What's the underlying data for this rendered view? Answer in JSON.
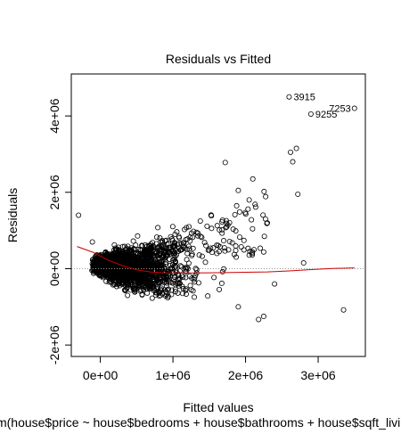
{
  "chart_data": {
    "type": "scatter",
    "title": "Residuals vs Fitted",
    "xlabel": "Fitted values",
    "ylabel": "Residuals",
    "caption": "lm(house$price ~ house$bedrooms + house$bathrooms + house$sqft_living + ...)",
    "xlim": [
      -400000,
      3650000
    ],
    "ylim": [
      -2300000,
      5100000
    ],
    "x_ticks": [
      {
        "value": 0,
        "label": "0e+00"
      },
      {
        "value": 1000000,
        "label": "1e+06"
      },
      {
        "value": 2000000,
        "label": "2e+06"
      },
      {
        "value": 3000000,
        "label": "3e+06"
      }
    ],
    "y_ticks": [
      {
        "value": -2000000,
        "label": "-2e+06"
      },
      {
        "value": 0,
        "label": "0e+00"
      },
      {
        "value": 2000000,
        "label": "2e+06"
      },
      {
        "value": 4000000,
        "label": "4e+06"
      }
    ],
    "zero_line": {
      "y": 0,
      "style": "dotted",
      "color": "#999999"
    },
    "smooth_line": {
      "color": "#cc0000",
      "points": [
        [
          -320000,
          580000
        ],
        [
          -100000,
          430000
        ],
        [
          100000,
          230000
        ],
        [
          300000,
          80000
        ],
        [
          500000,
          -30000
        ],
        [
          700000,
          -90000
        ],
        [
          900000,
          -110000
        ],
        [
          1100000,
          -115000
        ],
        [
          1300000,
          -112000
        ],
        [
          1500000,
          -108000
        ],
        [
          1700000,
          -103000
        ],
        [
          2000000,
          -95000
        ],
        [
          2300000,
          -85000
        ],
        [
          2600000,
          -60000
        ],
        [
          2900000,
          -25000
        ],
        [
          3200000,
          5000
        ],
        [
          3500000,
          20000
        ]
      ]
    },
    "outliers": [
      {
        "x": 2600000,
        "y": 4500000,
        "label": "3915"
      },
      {
        "x": 3500000,
        "y": 4200000,
        "label": "7253"
      },
      {
        "x": 2900000,
        "y": 4050000,
        "label": "9255"
      },
      {
        "x": 2700000,
        "y": 3150000,
        "label": ""
      },
      {
        "x": 2620000,
        "y": 3050000,
        "label": ""
      },
      {
        "x": 1720000,
        "y": 2780000,
        "label": ""
      },
      {
        "x": 2650000,
        "y": 2800000,
        "label": ""
      },
      {
        "x": 2100000,
        "y": 2350000,
        "label": ""
      },
      {
        "x": 2720000,
        "y": 1950000,
        "label": ""
      },
      {
        "x": -300000,
        "y": 1400000,
        "label": ""
      },
      {
        "x": -110000,
        "y": 700000,
        "label": ""
      },
      {
        "x": 2800000,
        "y": 150000,
        "label": ""
      },
      {
        "x": 3350000,
        "y": -1080000,
        "label": ""
      },
      {
        "x": 2250000,
        "y": -1250000,
        "label": ""
      },
      {
        "x": 2180000,
        "y": -1330000,
        "label": ""
      },
      {
        "x": 1900000,
        "y": -1000000,
        "label": ""
      },
      {
        "x": 2400000,
        "y": -400000,
        "label": ""
      },
      {
        "x": 2300000,
        "y": 1200000,
        "label": ""
      },
      {
        "x": 2050000,
        "y": 1800000,
        "label": ""
      },
      {
        "x": 1900000,
        "y": 2050000,
        "label": ""
      }
    ],
    "cloud_seed": 7,
    "cloud_count": 2200,
    "point_color": "#000000",
    "grid": false
  }
}
